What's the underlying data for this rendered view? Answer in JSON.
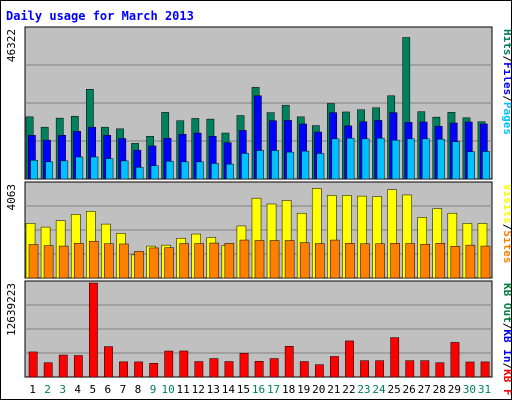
{
  "title": "Daily usage for March 2013",
  "colors": {
    "hits": "#00805c",
    "files": "#0000ff",
    "pages": "#00c0ff",
    "visits": "#ffff00",
    "sites": "#ff8000",
    "kbin": "#008040",
    "kbout": "#0000ff",
    "kbf": "#ff0000",
    "panel_bg": "#c0c0c0",
    "weekend_label": "#00805c",
    "weekday_label": "#000000"
  },
  "chart_data": [
    {
      "type": "bar",
      "panel": "hits-files-pages",
      "ymax_label": "46322",
      "ymax": 46322,
      "x": [
        "1",
        "2",
        "3",
        "4",
        "5",
        "6",
        "7",
        "8",
        "9",
        "10",
        "11",
        "12",
        "13",
        "14",
        "15",
        "16",
        "17",
        "18",
        "19",
        "20",
        "21",
        "22",
        "23",
        "24",
        "25",
        "26",
        "27",
        "28",
        "29",
        "30",
        "31"
      ],
      "weekend_days": [
        "2",
        "3",
        "9",
        "10",
        "16",
        "17",
        "23",
        "24",
        "30",
        "31"
      ],
      "series": [
        {
          "name": "Hits",
          "key": "hits",
          "values": [
            19200,
            16000,
            18800,
            19400,
            27700,
            16000,
            15500,
            11000,
            13200,
            20600,
            18000,
            18700,
            18500,
            14200,
            19600,
            28300,
            20500,
            22800,
            19200,
            16500,
            23300,
            20700,
            21400,
            22000,
            25700,
            43700,
            20800,
            19100,
            20600,
            18900,
            17700
          ]
        },
        {
          "name": "Files",
          "key": "files",
          "values": [
            13500,
            12000,
            13500,
            14700,
            16000,
            13500,
            12500,
            8900,
            10200,
            12600,
            13800,
            14200,
            13200,
            11200,
            15000,
            25700,
            18000,
            18100,
            17000,
            14500,
            20500,
            16400,
            17700,
            18100,
            20500,
            17500,
            17600,
            16300,
            17300,
            17600,
            17000
          ]
        },
        {
          "name": "Pages",
          "key": "pages",
          "values": [
            5800,
            5300,
            5600,
            6800,
            6800,
            6300,
            5600,
            3600,
            4100,
            5500,
            5300,
            5300,
            4800,
            4600,
            7900,
            8800,
            8800,
            8300,
            8600,
            7900,
            12400,
            12600,
            12400,
            12600,
            12000,
            12400,
            12400,
            12300,
            11500,
            8400,
            8500
          ]
        }
      ]
    },
    {
      "type": "bar",
      "panel": "visits-sites",
      "ymax_label": "4063",
      "ymax": 4063,
      "x": [
        "1",
        "2",
        "3",
        "4",
        "5",
        "6",
        "7",
        "8",
        "9",
        "10",
        "11",
        "12",
        "13",
        "14",
        "15",
        "16",
        "17",
        "18",
        "19",
        "20",
        "21",
        "22",
        "23",
        "24",
        "25",
        "26",
        "27",
        "28",
        "29",
        "30",
        "31"
      ],
      "series": [
        {
          "name": "Visits",
          "key": "visits",
          "values": [
            2360,
            2200,
            2480,
            2750,
            2880,
            2330,
            1930,
            1000,
            1380,
            1420,
            1720,
            1900,
            1750,
            1400,
            2250,
            3450,
            3200,
            3350,
            2800,
            3870,
            3570,
            3570,
            3540,
            3520,
            3820,
            3590,
            2620,
            3000,
            2800,
            2360,
            2360
          ]
        },
        {
          "name": "Sites",
          "key": "sites",
          "values": [
            1450,
            1400,
            1380,
            1500,
            1590,
            1480,
            1470,
            1150,
            1300,
            1310,
            1490,
            1490,
            1510,
            1500,
            1640,
            1620,
            1620,
            1620,
            1530,
            1490,
            1640,
            1500,
            1480,
            1480,
            1500,
            1490,
            1460,
            1500,
            1370,
            1420,
            1380
          ]
        }
      ]
    },
    {
      "type": "bar",
      "panel": "kbf-kbin-kbout",
      "ymax_label": "12639223",
      "ymax": 12639223,
      "x": [
        "1",
        "2",
        "3",
        "4",
        "5",
        "6",
        "7",
        "8",
        "9",
        "10",
        "11",
        "12",
        "13",
        "14",
        "15",
        "16",
        "17",
        "18",
        "19",
        "20",
        "21",
        "22",
        "23",
        "24",
        "25",
        "26",
        "27",
        "28",
        "29",
        "30",
        "31"
      ],
      "series": [
        {
          "name": "KB F",
          "key": "kbf",
          "values": [
            3370000,
            1920000,
            2950000,
            2890000,
            12639223,
            4090000,
            2040000,
            2030000,
            1840000,
            3490000,
            3500000,
            2080000,
            2480000,
            2080000,
            3200000,
            2110000,
            2480000,
            4130000,
            2080000,
            1660000,
            2760000,
            4850000,
            2200000,
            2200000,
            5300000,
            2200000,
            2200000,
            1920000,
            4650000,
            2020000,
            2030000
          ]
        }
      ]
    }
  ],
  "axis_labels": {
    "panel1_right": [
      {
        "text": "Pages",
        "color_key": "pages"
      },
      {
        "text": "/",
        "color_key": "weekday_label"
      },
      {
        "text": "Files",
        "color_key": "files"
      },
      {
        "text": "/",
        "color_key": "weekday_label"
      },
      {
        "text": "Hits",
        "color_key": "hits"
      }
    ],
    "panel2_right": [
      {
        "text": "Sites",
        "color_key": "sites"
      },
      {
        "text": "/",
        "color_key": "weekday_label"
      },
      {
        "text": "Visits",
        "color_key": "visits"
      }
    ],
    "panel3_right": [
      {
        "text": "KB F",
        "color_key": "kbf"
      },
      {
        "text": "/",
        "color_key": "weekday_label"
      },
      {
        "text": "KB In",
        "color_key": "kbout"
      },
      {
        "text": "/",
        "color_key": "weekday_label"
      },
      {
        "text": "KB Out",
        "color_key": "kbin"
      }
    ]
  }
}
